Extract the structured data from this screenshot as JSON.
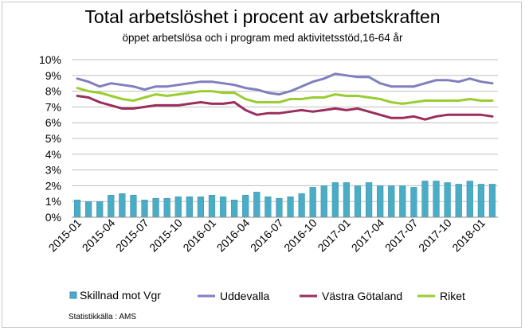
{
  "colors": {
    "bar": "#4bacc6",
    "bar_stroke": "#3a94ad",
    "uddevalla": "#7f7fbf",
    "vgr": "#9b2d5d",
    "riket": "#9acd32",
    "grid": "#bfbfbf"
  },
  "chart_data": {
    "type": "bar",
    "title": "Total arbetslöshet i procent av arbetskraften",
    "subtitle": "öppet arbetslösa och i program med aktivitetsstöd,16-64 år",
    "source": "Statistikkälla : AMS",
    "ylim": [
      0,
      10
    ],
    "yticks": [
      "0%",
      "1%",
      "2%",
      "3%",
      "4%",
      "5%",
      "6%",
      "7%",
      "8%",
      "9%",
      "10%"
    ],
    "grid": true,
    "legend_position": "bottom",
    "categories": [
      "2015-01",
      "2015-02",
      "2015-03",
      "2015-04",
      "2015-05",
      "2015-06",
      "2015-07",
      "2015-08",
      "2015-09",
      "2015-10",
      "2015-11",
      "2015-12",
      "2016-01",
      "2016-02",
      "2016-03",
      "2016-04",
      "2016-05",
      "2016-06",
      "2016-07",
      "2016-08",
      "2016-09",
      "2016-10",
      "2016-11",
      "2016-12",
      "2017-01",
      "2017-02",
      "2017-03",
      "2017-04",
      "2017-05",
      "2017-06",
      "2017-07",
      "2017-08",
      "2017-09",
      "2017-10",
      "2017-11",
      "2017-12",
      "2018-01",
      "2018-02"
    ],
    "tick_labels": [
      "2015-01",
      "2015-04",
      "2015-07",
      "2015-10",
      "2016-01",
      "2016-04",
      "2016-07",
      "2016-10",
      "2017-01",
      "2017-04",
      "2017-07",
      "2017-10",
      "2018-01"
    ],
    "series": [
      {
        "name": "Skillnad mot Vgr",
        "kind": "bar",
        "values": [
          1.1,
          1.0,
          1.0,
          1.4,
          1.5,
          1.4,
          1.1,
          1.2,
          1.2,
          1.3,
          1.3,
          1.3,
          1.4,
          1.3,
          1.1,
          1.4,
          1.6,
          1.3,
          1.2,
          1.3,
          1.5,
          1.9,
          2.0,
          2.2,
          2.2,
          2.0,
          2.2,
          2.0,
          2.0,
          2.0,
          1.9,
          2.3,
          2.3,
          2.2,
          2.1,
          2.3,
          2.1,
          2.1
        ]
      },
      {
        "name": "Uddevalla",
        "kind": "line",
        "values": [
          8.8,
          8.6,
          8.3,
          8.5,
          8.4,
          8.3,
          8.1,
          8.3,
          8.3,
          8.4,
          8.5,
          8.6,
          8.6,
          8.5,
          8.4,
          8.2,
          8.1,
          7.9,
          7.8,
          8.0,
          8.3,
          8.6,
          8.8,
          9.1,
          9.0,
          8.9,
          8.9,
          8.5,
          8.3,
          8.3,
          8.3,
          8.5,
          8.7,
          8.7,
          8.6,
          8.8,
          8.6,
          8.5
        ]
      },
      {
        "name": "Västra Götaland",
        "kind": "line",
        "values": [
          7.7,
          7.6,
          7.3,
          7.1,
          6.9,
          6.9,
          7.0,
          7.1,
          7.1,
          7.1,
          7.2,
          7.3,
          7.2,
          7.2,
          7.3,
          6.8,
          6.5,
          6.6,
          6.6,
          6.7,
          6.8,
          6.7,
          6.8,
          6.9,
          6.8,
          6.9,
          6.7,
          6.5,
          6.3,
          6.3,
          6.4,
          6.2,
          6.4,
          6.5,
          6.5,
          6.5,
          6.5,
          6.4
        ]
      },
      {
        "name": "Riket",
        "kind": "line",
        "values": [
          8.2,
          8.0,
          7.9,
          7.7,
          7.5,
          7.4,
          7.6,
          7.8,
          7.7,
          7.8,
          7.9,
          8.0,
          8.0,
          7.9,
          7.9,
          7.5,
          7.3,
          7.3,
          7.3,
          7.5,
          7.5,
          7.6,
          7.6,
          7.8,
          7.7,
          7.7,
          7.6,
          7.5,
          7.3,
          7.2,
          7.3,
          7.4,
          7.4,
          7.4,
          7.4,
          7.5,
          7.4,
          7.4
        ]
      }
    ]
  }
}
